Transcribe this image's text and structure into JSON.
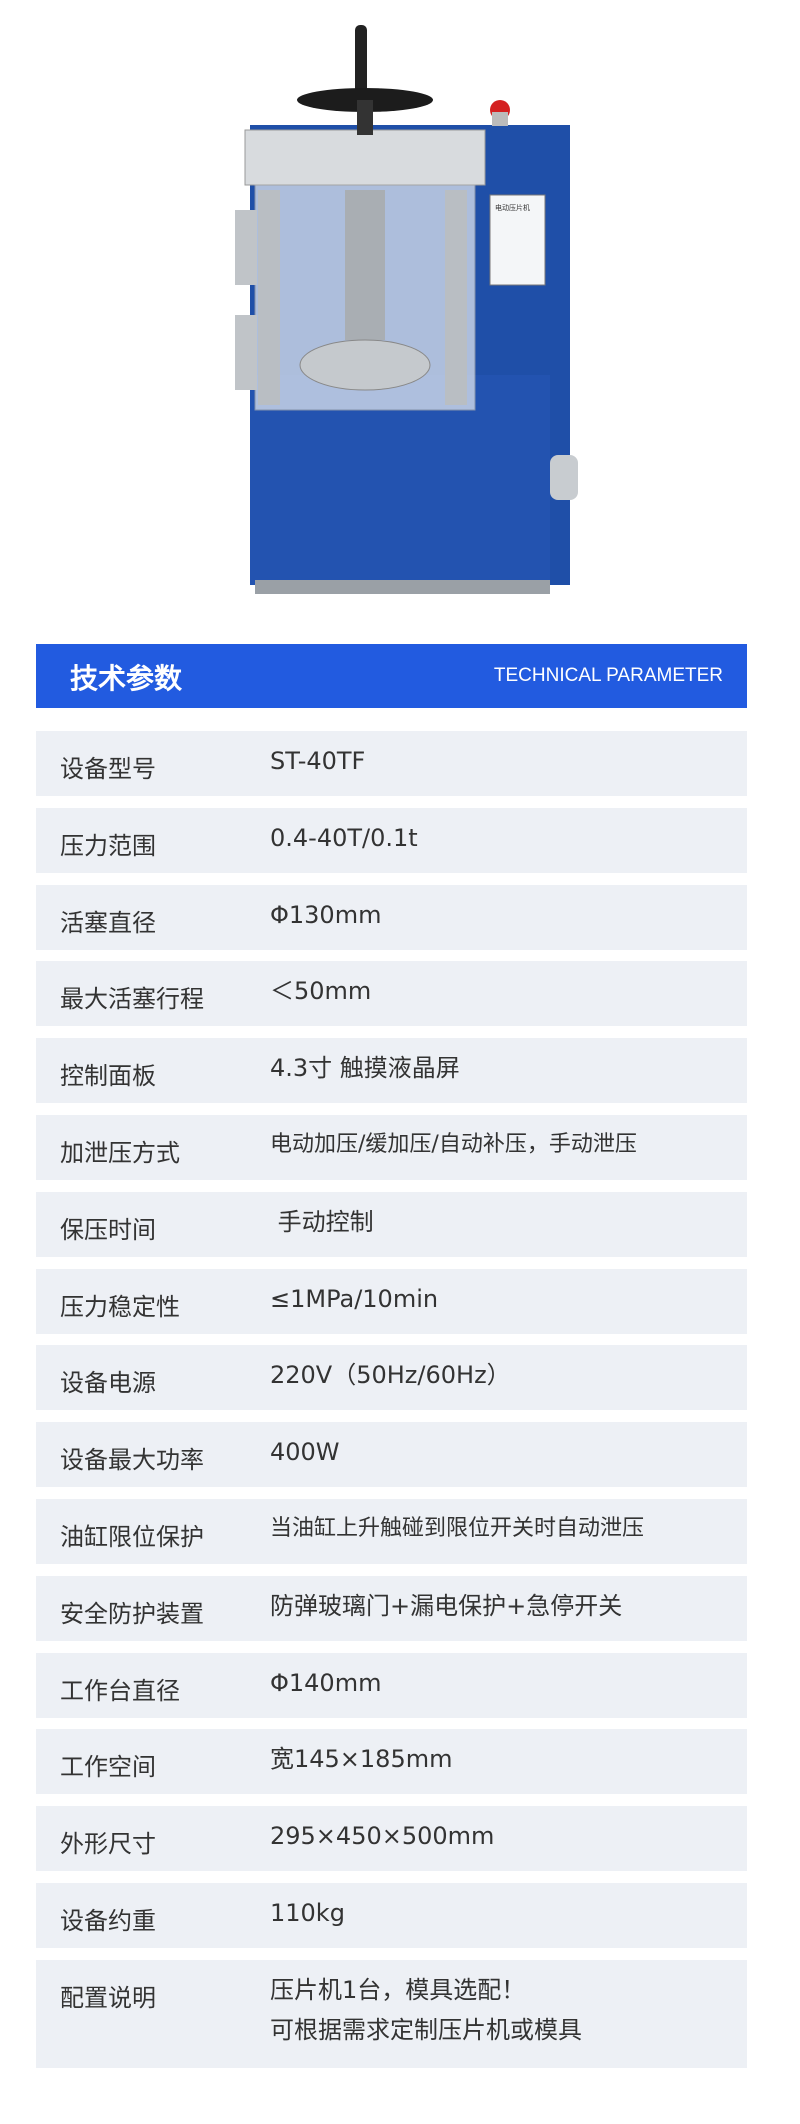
{
  "product_image": {
    "screen_title": "电动压片机",
    "colors": {
      "body": "#1f4fa8",
      "steel": "#c8ccd0"
    }
  },
  "header": {
    "title": "技术参数",
    "subtitle": "TECHNICAL PARAMETER",
    "color": "#225be0"
  },
  "params": [
    {
      "label": "设备型号",
      "value": "ST-40TF"
    },
    {
      "label": "压力范围",
      "value": "0.4-40T/0.1t"
    },
    {
      "label": "活塞直径",
      "value": "Φ130mm"
    },
    {
      "label": "最大活塞行程",
      "value": "＜50mm"
    },
    {
      "label": "控制面板",
      "value": "4.3寸 触摸液晶屏"
    },
    {
      "label": "加泄压方式",
      "value": "电动加压/缓加压/自动补压，手动泄压"
    },
    {
      "label": "保压时间",
      "value": " 手动控制"
    },
    {
      "label": "压力稳定性",
      "value": "≤1MPa/10min"
    },
    {
      "label": "设备电源",
      "value": "220V（50Hz/60Hz）"
    },
    {
      "label": "设备最大功率",
      "value": "400W"
    },
    {
      "label": "油缸限位保护",
      "value": "当油缸上升触碰到限位开关时自动泄压"
    },
    {
      "label": "安全防护装置",
      "value": "防弹玻璃门+漏电保护+急停开关"
    },
    {
      "label": "工作台直径",
      "value": "Φ140mm"
    },
    {
      "label": "工作空间",
      "value": "宽145×185mm"
    },
    {
      "label": "外形尺寸",
      "value": "295×450×500mm"
    },
    {
      "label": "设备约重",
      "value": "110kg"
    },
    {
      "label": "配置说明",
      "value": "压片机1台，模具选配！",
      "value2": "可根据需求定制压片机或模具"
    }
  ]
}
